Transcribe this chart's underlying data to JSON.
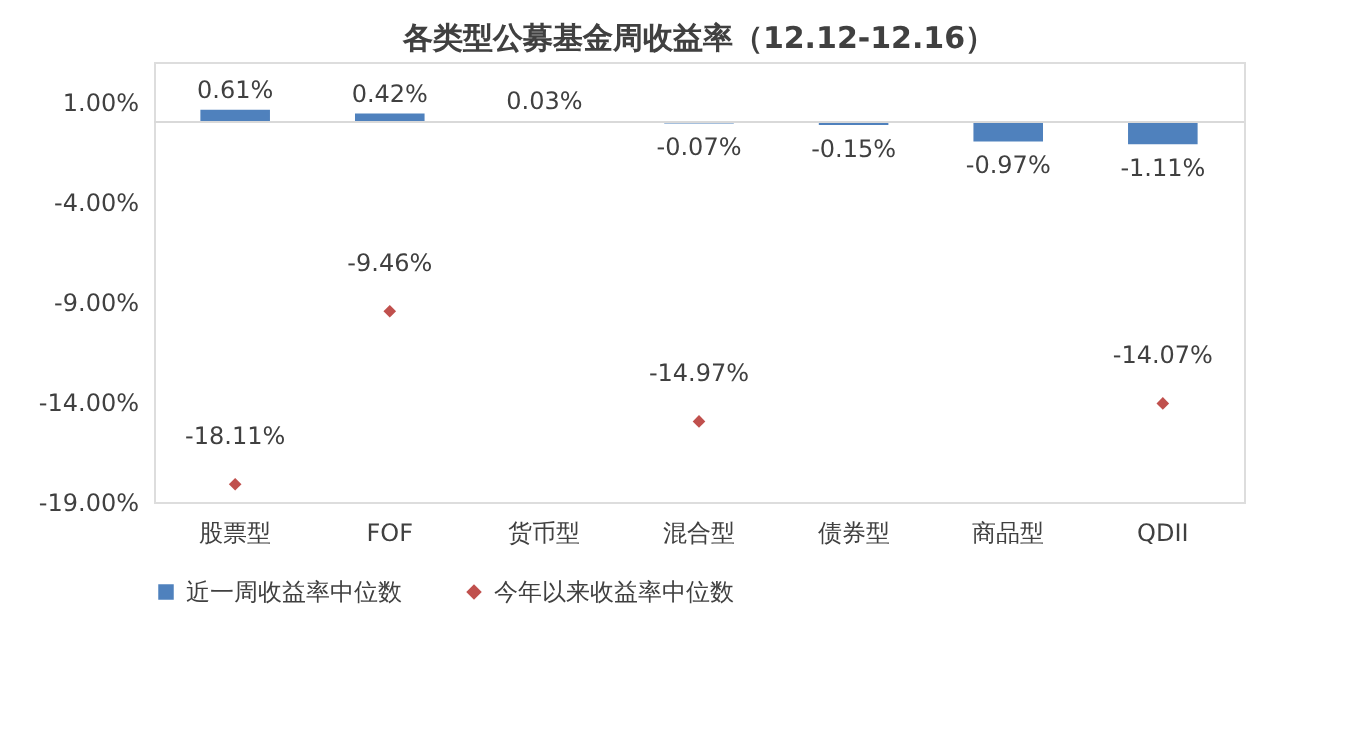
{
  "chart_data": {
    "type": "bar",
    "title": "各类型公募基金周收益率（12.12-12.16）",
    "categories": [
      "股票型",
      "FOF",
      "货币型",
      "混合型",
      "债券型",
      "商品型",
      "QDII"
    ],
    "series": [
      {
        "name": "近一周收益率中位数",
        "color": "#4f81bd",
        "values": [
          0.61,
          0.42,
          0.03,
          -0.07,
          -0.15,
          -0.97,
          -1.11
        ],
        "value_labels": [
          "0.61%",
          "0.42%",
          "0.03%",
          "-0.07%",
          "-0.15%",
          "-0.97%",
          "-1.11%"
        ]
      },
      {
        "name": "今年以来收益率中位数",
        "type": "scatter",
        "marker": "diamond",
        "color": "#c0504d",
        "values": [
          -18.11,
          -9.46,
          null,
          -14.97,
          null,
          null,
          -14.07
        ],
        "value_labels": [
          "-18.11%",
          "-9.46%",
          null,
          "-14.97%",
          null,
          null,
          "-14.07%"
        ]
      }
    ],
    "ylim": [
      -19,
      3
    ],
    "yticks": [
      {
        "value": 1,
        "label": "1.00%"
      },
      {
        "value": -4,
        "label": "-4.00%"
      },
      {
        "value": -9,
        "label": "-9.00%"
      },
      {
        "value": -14,
        "label": "-14.00%"
      },
      {
        "value": -19,
        "label": "-19.00%"
      }
    ],
    "ref_lines": [
      {
        "axis": "y",
        "value": 0,
        "color": "#d9d9d9"
      }
    ],
    "grid": false,
    "legend": "bottom"
  }
}
